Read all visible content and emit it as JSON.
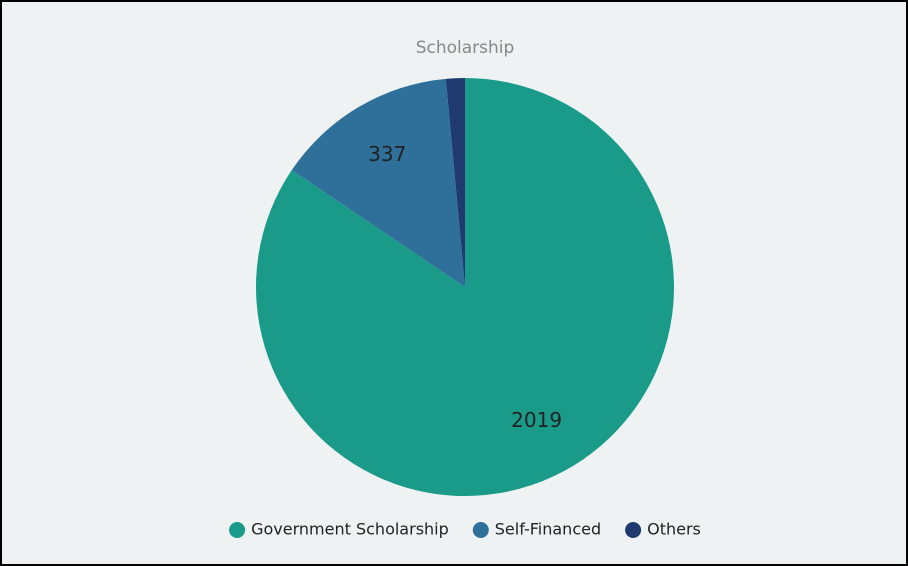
{
  "chart_data": {
    "type": "pie",
    "title": "Scholarship",
    "categories": [
      "Government Scholarship",
      "Self-Financed",
      "Others"
    ],
    "values": [
      2019,
      337,
      35
    ],
    "colors": [
      "#1a9a88",
      "#2e7099",
      "#1f3a6e"
    ],
    "legend": "bottom"
  }
}
